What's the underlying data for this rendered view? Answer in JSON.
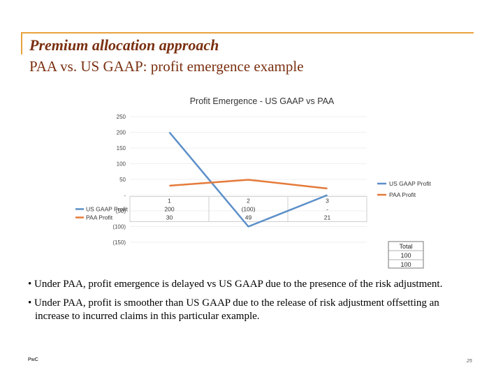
{
  "header": {
    "title": "Premium allocation approach",
    "subtitle": "PAA vs. US GAAP: profit emergence example"
  },
  "chart_data": {
    "type": "line",
    "title": "Profit Emergence - US GAAP vs PAA",
    "categories": [
      "1",
      "2",
      "3"
    ],
    "ylim": [
      -150,
      250
    ],
    "y_ticks": [
      "250",
      "200",
      "150",
      "100",
      "50",
      "-",
      "(50)",
      "(100)",
      "(150)"
    ],
    "series": [
      {
        "name": "US GAAP Profit",
        "values": [
          200,
          -100,
          0
        ],
        "labels": [
          "200",
          "(100)",
          "-"
        ],
        "color": "#5b8fc9"
      },
      {
        "name": "PAA Profit",
        "values": [
          30,
          49,
          21
        ],
        "labels": [
          "30",
          "49",
          "21"
        ],
        "color": "#e57a3a"
      }
    ],
    "legend": "right",
    "total": {
      "header": "Total",
      "values": [
        "100",
        "100"
      ]
    }
  },
  "bullets": [
    "• Under PAA, profit emergence is delayed vs US GAAP due to the presence of the risk adjustment.",
    "• Under PAA, profit is smoother than US GAAP due to the release of risk adjustment offsetting an increase to incurred claims in this particular example."
  ],
  "footer": {
    "logo": "PwC",
    "page": "25"
  }
}
